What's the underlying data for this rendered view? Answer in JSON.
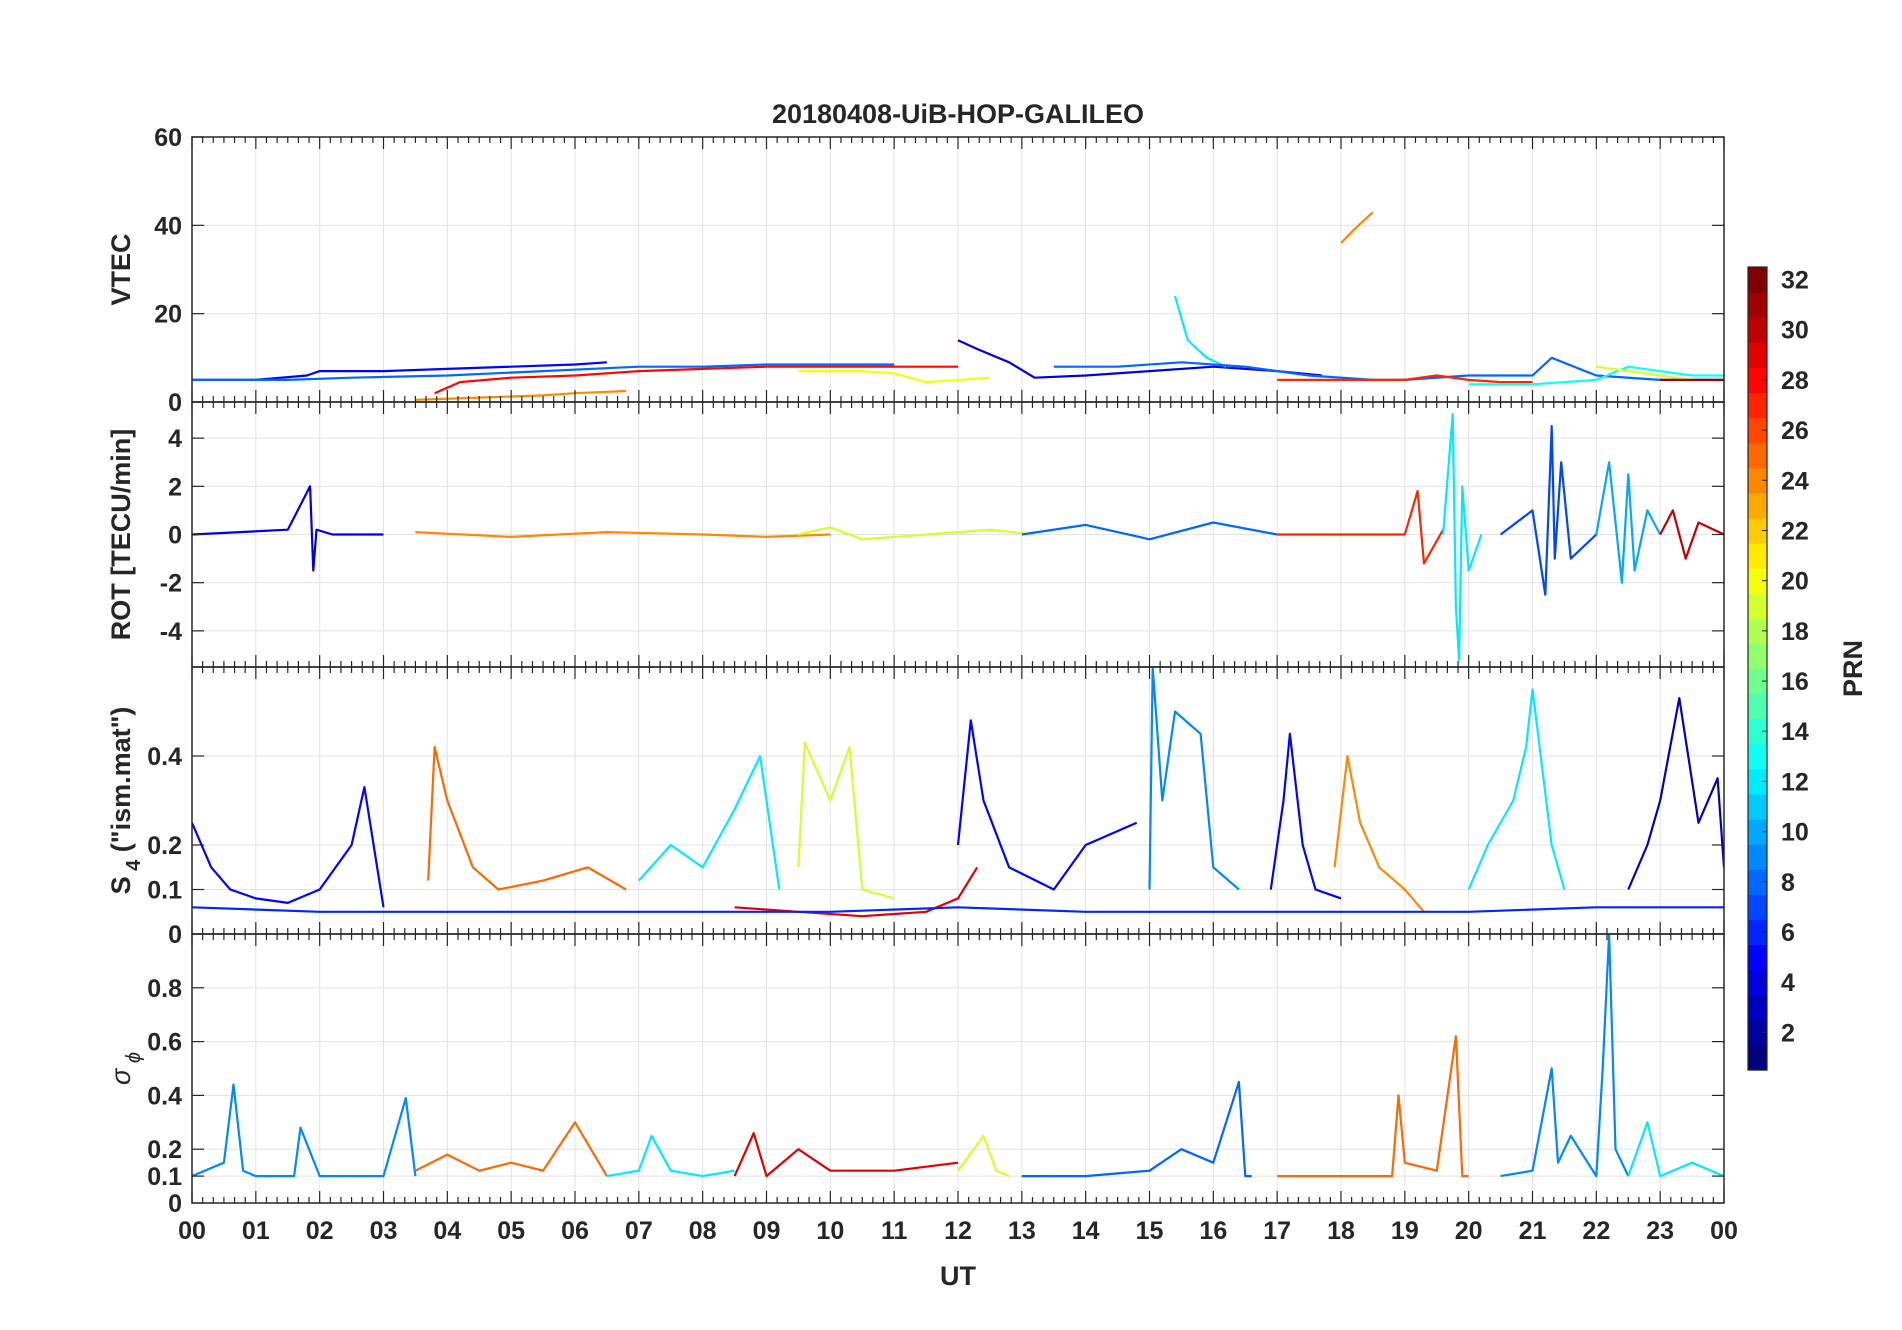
{
  "chart_data": [
    {
      "type": "line",
      "title": "20180408-UiB-HOP-GALILEO",
      "ylabel": "VTEC",
      "ylim": [
        0,
        60
      ],
      "yticks": [
        0,
        20,
        40,
        60
      ],
      "ytick_labels": [
        "0",
        "20",
        "40",
        "60"
      ],
      "xlim": [
        0,
        24
      ],
      "grid": true,
      "series": [
        {
          "prn": 5,
          "x": [
            0.0,
            1.0,
            1.8,
            2.0,
            3.0,
            4.0,
            5.0,
            6.0,
            6.5
          ],
          "y": [
            5,
            5,
            6,
            7,
            7,
            7.5,
            8,
            8.5,
            9
          ]
        },
        {
          "prn": 8,
          "x": [
            0.0,
            1.5,
            2.5,
            4.0,
            5.5,
            7.0,
            8.0,
            9.0,
            10.0,
            11.0
          ],
          "y": [
            5,
            5,
            5.5,
            6,
            7,
            8,
            8,
            8.5,
            8.5,
            8.5
          ]
        },
        {
          "prn": 28,
          "x": [
            3.8,
            4.2,
            5.0,
            6.0,
            7.0,
            8.0,
            9.0,
            10.0,
            11.0,
            12.0
          ],
          "y": [
            2,
            4.5,
            5.5,
            6,
            7,
            7.5,
            8,
            8,
            8,
            8
          ]
        },
        {
          "prn": 24,
          "x": [
            3.5,
            4.5,
            5.5,
            6.0,
            6.8
          ],
          "y": [
            0.5,
            1.0,
            1.5,
            2,
            2.5
          ]
        },
        {
          "prn": 20,
          "x": [
            9.5,
            10.5,
            11.0,
            11.5,
            12.0,
            12.5
          ],
          "y": [
            7,
            7,
            6.5,
            4.5,
            5,
            5.5
          ]
        },
        {
          "prn": 4,
          "x": [
            12.0,
            12.3,
            12.8,
            13.2,
            14.0,
            15.0,
            16.0,
            17.0,
            17.7
          ],
          "y": [
            14,
            12,
            9,
            5.5,
            6,
            7,
            8,
            7,
            6
          ]
        },
        {
          "prn": 12,
          "x": [
            15.4,
            15.6,
            15.9,
            16.2
          ],
          "y": [
            24,
            14,
            10,
            8
          ]
        },
        {
          "prn": 24,
          "x": [
            18.0,
            18.2,
            18.5
          ],
          "y": [
            36,
            39,
            43
          ]
        },
        {
          "prn": 8,
          "x": [
            13.5,
            14.5,
            15.5,
            16.5,
            17.5,
            18.5,
            19.0,
            20.0,
            21.0,
            21.3,
            22.0,
            23.0,
            24.0
          ],
          "y": [
            8,
            8,
            9,
            8,
            6,
            5,
            5,
            6,
            6,
            10,
            6,
            5,
            5
          ]
        },
        {
          "prn": 27,
          "x": [
            17.0,
            18.0,
            19.0,
            19.5,
            20.0,
            20.5,
            21.0
          ],
          "y": [
            5,
            5,
            5,
            6,
            5,
            4.5,
            4.5
          ]
        },
        {
          "prn": 13,
          "x": [
            20.0,
            21.0,
            22.0,
            22.5,
            23.0,
            23.5,
            24.0
          ],
          "y": [
            4,
            4,
            5,
            8,
            7,
            6,
            6
          ]
        },
        {
          "prn": 19,
          "x": [
            22.0,
            22.5,
            23.0,
            23.5
          ],
          "y": [
            8,
            7,
            6,
            5
          ]
        },
        {
          "prn": 31,
          "x": [
            23.0,
            23.5,
            24.0
          ],
          "y": [
            5,
            5,
            5
          ]
        }
      ]
    },
    {
      "type": "line",
      "ylabel": "ROT [TECU/min]",
      "ylim": [
        -5.5,
        5.5
      ],
      "yticks": [
        -4,
        -2,
        0,
        2,
        4
      ],
      "ytick_labels": [
        "-4",
        "-2",
        "0",
        "2",
        "4"
      ],
      "xlim": [
        0,
        24
      ],
      "grid": true,
      "series": [
        {
          "prn": 4,
          "x": [
            0,
            1.5,
            1.85,
            1.9,
            1.95,
            2.2,
            3.0
          ],
          "y": [
            0,
            0.2,
            2,
            -1.5,
            0.2,
            0,
            0
          ]
        },
        {
          "prn": 24,
          "x": [
            3.5,
            5,
            6.5,
            8,
            9,
            10
          ],
          "y": [
            0.1,
            -0.1,
            0.1,
            0,
            -0.1,
            0
          ]
        },
        {
          "prn": 19,
          "x": [
            9.5,
            10,
            10.5,
            12.5,
            13.2
          ],
          "y": [
            0,
            0.3,
            -0.2,
            0.2,
            0
          ]
        },
        {
          "prn": 8,
          "x": [
            13,
            14,
            15,
            16,
            17
          ],
          "y": [
            0,
            0.4,
            -0.2,
            0.5,
            0
          ]
        },
        {
          "prn": 27,
          "x": [
            17,
            18,
            19,
            19.2,
            19.3,
            19.6
          ],
          "y": [
            0,
            0,
            0,
            1.8,
            -1.2,
            0.2
          ]
        },
        {
          "prn": 12,
          "x": [
            19.6,
            19.75,
            19.8,
            19.85,
            19.9,
            20.0,
            20.2
          ],
          "y": [
            0,
            5,
            -3,
            -5.2,
            2,
            -1.5,
            0
          ]
        },
        {
          "prn": 7,
          "x": [
            20.5,
            21.0,
            21.2,
            21.3,
            21.35,
            21.45,
            21.6,
            22.0
          ],
          "y": [
            0,
            1,
            -2.5,
            4.5,
            -1,
            3,
            -1,
            0
          ]
        },
        {
          "prn": 10,
          "x": [
            22.0,
            22.2,
            22.4,
            22.5,
            22.6,
            22.8,
            23.0
          ],
          "y": [
            0,
            3,
            -2,
            2.5,
            -1.5,
            1,
            0
          ]
        },
        {
          "prn": 30,
          "x": [
            23.0,
            23.2,
            23.4,
            23.6,
            24.0
          ],
          "y": [
            0,
            1,
            -1,
            0.5,
            0
          ]
        }
      ]
    },
    {
      "type": "line",
      "ylabel": "S",
      "ylabel_sub": "4",
      "ylabel_suffix": " (\"ism.mat\")",
      "ylim": [
        0,
        0.6
      ],
      "yticks": [
        0,
        0.1,
        0.2,
        0.4
      ],
      "ytick_labels": [
        "0",
        "0.1",
        "0.2",
        "0.4"
      ],
      "xlim": [
        0,
        24
      ],
      "grid": true,
      "series": [
        {
          "prn": 5,
          "x": [
            0,
            0.3,
            0.6,
            1.0,
            1.5,
            2.0,
            2.5,
            2.7,
            3.0
          ],
          "y": [
            0.25,
            0.15,
            0.1,
            0.08,
            0.07,
            0.1,
            0.2,
            0.33,
            0.06
          ]
        },
        {
          "prn": 25,
          "x": [
            3.7,
            3.8,
            4.0,
            4.4,
            4.8,
            5.5,
            6.2,
            6.8
          ],
          "y": [
            0.12,
            0.42,
            0.3,
            0.15,
            0.1,
            0.12,
            0.15,
            0.1
          ]
        },
        {
          "prn": 12,
          "x": [
            7.0,
            7.5,
            8.0,
            8.5,
            8.9,
            9.2
          ],
          "y": [
            0.12,
            0.2,
            0.15,
            0.28,
            0.4,
            0.1
          ]
        },
        {
          "prn": 19,
          "x": [
            9.5,
            9.6,
            10.0,
            10.3,
            10.5,
            11.0
          ],
          "y": [
            0.15,
            0.43,
            0.3,
            0.42,
            0.1,
            0.08
          ]
        },
        {
          "prn": 29,
          "x": [
            8.5,
            9.5,
            10.5,
            11.5,
            12.0,
            12.3
          ],
          "y": [
            0.06,
            0.05,
            0.04,
            0.05,
            0.08,
            0.15
          ]
        },
        {
          "prn": 5,
          "x": [
            12.0,
            12.2,
            12.4,
            12.8,
            13.5,
            14.0,
            14.8
          ],
          "y": [
            0.2,
            0.48,
            0.3,
            0.15,
            0.1,
            0.2,
            0.25
          ]
        },
        {
          "prn": 9,
          "x": [
            15.0,
            15.05,
            15.2,
            15.4,
            15.8,
            16.0,
            16.4
          ],
          "y": [
            0.1,
            0.6,
            0.3,
            0.5,
            0.45,
            0.15,
            0.1
          ]
        },
        {
          "prn": 5,
          "x": [
            16.9,
            17.1,
            17.2,
            17.4,
            17.6,
            18.0
          ],
          "y": [
            0.1,
            0.3,
            0.45,
            0.2,
            0.1,
            0.08
          ]
        },
        {
          "prn": 24,
          "x": [
            17.9,
            18.1,
            18.3,
            18.6,
            19.0,
            19.3
          ],
          "y": [
            0.15,
            0.4,
            0.25,
            0.15,
            0.1,
            0.05
          ]
        },
        {
          "prn": 12,
          "x": [
            20.0,
            20.3,
            20.7,
            20.9,
            21.0,
            21.3,
            21.5
          ],
          "y": [
            0.1,
            0.2,
            0.3,
            0.42,
            0.55,
            0.2,
            0.1
          ]
        },
        {
          "prn": 3,
          "x": [
            22.5,
            22.8,
            23.0,
            23.3,
            23.6,
            23.9,
            24.0
          ],
          "y": [
            0.1,
            0.2,
            0.3,
            0.53,
            0.25,
            0.35,
            0.15
          ]
        },
        {
          "prn": 6,
          "x": [
            0,
            2,
            4,
            6,
            8,
            10,
            12,
            14,
            16,
            18,
            20,
            22,
            24
          ],
          "y": [
            0.06,
            0.05,
            0.05,
            0.05,
            0.05,
            0.05,
            0.06,
            0.05,
            0.05,
            0.05,
            0.05,
            0.06,
            0.06
          ]
        }
      ]
    },
    {
      "type": "line",
      "ylabel": "σ",
      "ylabel_sub": "ϕ",
      "xlabel": "UT",
      "ylim": [
        0,
        1
      ],
      "yticks": [
        0,
        0.1,
        0.2,
        0.4,
        0.6,
        0.8
      ],
      "ytick_labels": [
        "0",
        "0.1",
        "0.2",
        "0.4",
        "0.6",
        "0.8"
      ],
      "xlim": [
        0,
        24
      ],
      "xticks": [
        0,
        1,
        2,
        3,
        4,
        5,
        6,
        7,
        8,
        9,
        10,
        11,
        12,
        13,
        14,
        15,
        16,
        17,
        18,
        19,
        20,
        21,
        22,
        23,
        24
      ],
      "xtick_labels": [
        "00",
        "01",
        "02",
        "03",
        "04",
        "05",
        "06",
        "07",
        "08",
        "09",
        "10",
        "11",
        "12",
        "13",
        "14",
        "15",
        "16",
        "17",
        "18",
        "19",
        "20",
        "21",
        "22",
        "23",
        "00"
      ],
      "grid": true,
      "series": [
        {
          "prn": 9,
          "x": [
            0,
            0.5,
            0.65,
            0.8,
            1.0,
            1.6,
            1.7,
            2.0,
            3.0,
            3.35,
            3.5
          ],
          "y": [
            0.1,
            0.15,
            0.44,
            0.12,
            0.1,
            0.1,
            0.28,
            0.1,
            0.1,
            0.39,
            0.1
          ]
        },
        {
          "prn": 25,
          "x": [
            3.5,
            4.0,
            4.5,
            5.0,
            5.5,
            6.0,
            6.5
          ],
          "y": [
            0.12,
            0.18,
            0.12,
            0.15,
            0.12,
            0.3,
            0.1
          ]
        },
        {
          "prn": 12,
          "x": [
            6.5,
            7.0,
            7.2,
            7.5,
            8.0,
            8.5
          ],
          "y": [
            0.1,
            0.12,
            0.25,
            0.12,
            0.1,
            0.12
          ]
        },
        {
          "prn": 29,
          "x": [
            8.5,
            8.8,
            9.0,
            9.5,
            10.0,
            11.0,
            12.0
          ],
          "y": [
            0.1,
            0.26,
            0.1,
            0.2,
            0.12,
            0.12,
            0.15
          ]
        },
        {
          "prn": 19,
          "x": [
            12.0,
            12.4,
            12.6,
            12.8
          ],
          "y": [
            0.12,
            0.25,
            0.12,
            0.1
          ]
        },
        {
          "prn": 8,
          "x": [
            13.0,
            14.0,
            15.0,
            15.5,
            16.0,
            16.4,
            16.5,
            16.6
          ],
          "y": [
            0.1,
            0.1,
            0.12,
            0.2,
            0.15,
            0.45,
            0.1,
            0.1
          ]
        },
        {
          "prn": 25,
          "x": [
            17.0,
            18.0,
            18.8,
            18.9,
            19.0,
            19.5,
            19.8,
            19.9,
            20.0
          ],
          "y": [
            0.1,
            0.1,
            0.1,
            0.4,
            0.15,
            0.12,
            0.62,
            0.1,
            0.1
          ]
        },
        {
          "prn": 9,
          "x": [
            20.5,
            21.0,
            21.3,
            21.4,
            21.6,
            22.0,
            22.1,
            22.2,
            22.3,
            22.5
          ],
          "y": [
            0.1,
            0.12,
            0.5,
            0.15,
            0.25,
            0.1,
            0.5,
            1.0,
            0.2,
            0.1
          ]
        },
        {
          "prn": 12,
          "x": [
            22.5,
            22.8,
            23.0,
            23.5,
            24.0
          ],
          "y": [
            0.1,
            0.3,
            0.1,
            0.15,
            0.1
          ]
        }
      ]
    }
  ],
  "colorbar": {
    "label": "PRN",
    "range": [
      1,
      32
    ],
    "ticks": [
      2,
      4,
      6,
      8,
      10,
      12,
      14,
      16,
      18,
      20,
      22,
      24,
      26,
      28,
      30,
      32
    ],
    "tick_labels": [
      "2",
      "4",
      "6",
      "8",
      "10",
      "12",
      "14",
      "16",
      "18",
      "20",
      "22",
      "24",
      "26",
      "28",
      "30",
      "32"
    ],
    "colormap": "jet"
  }
}
